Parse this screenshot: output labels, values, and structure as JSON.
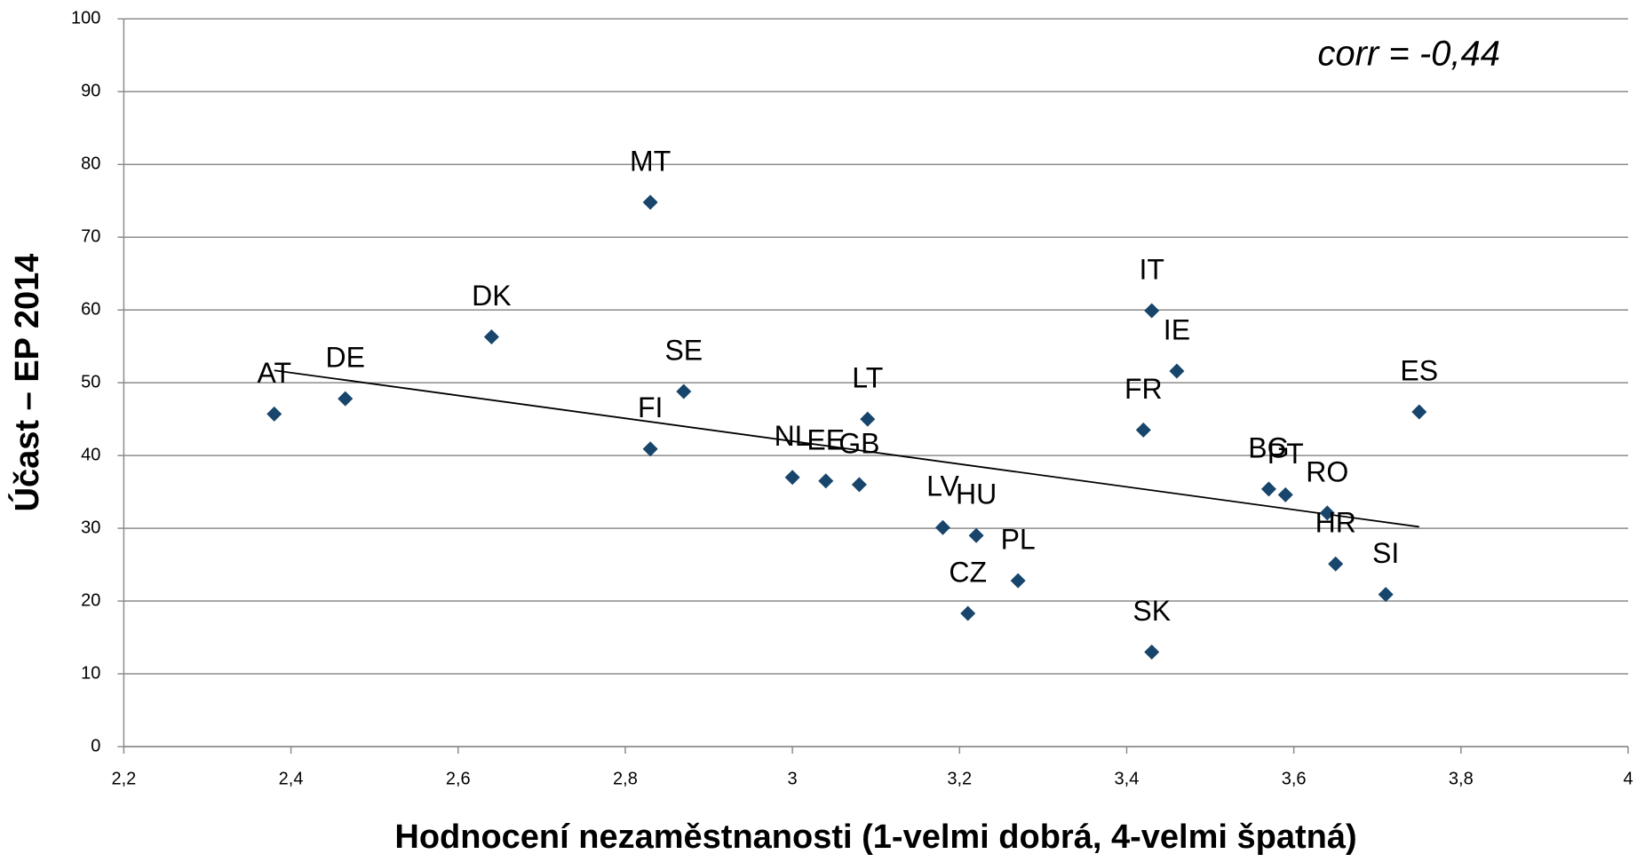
{
  "chart_data": {
    "type": "scatter",
    "xlabel": "Hodnocení nezaměstnanosti (1-velmi dobrá, 4-velmi špatná)",
    "ylabel": "Účast – EP 2014",
    "annotation": "corr = -0,44",
    "point_labels": [
      "AT",
      "DE",
      "DK",
      "MT",
      "SE",
      "FI",
      "NL",
      "EE",
      "GB",
      "LT",
      "LV",
      "HU",
      "CZ",
      "PL",
      "SK",
      "IT",
      "IE",
      "FR",
      "BG",
      "PT",
      "RO",
      "HR",
      "SI",
      "ES"
    ],
    "x": [
      2.38,
      2.465,
      2.64,
      2.83,
      2.87,
      2.83,
      3.0,
      3.04,
      3.08,
      3.09,
      3.18,
      3.22,
      3.21,
      3.27,
      3.43,
      3.43,
      3.46,
      3.42,
      3.57,
      3.59,
      3.64,
      3.65,
      3.71,
      3.75
    ],
    "values": [
      45.7,
      47.8,
      56.3,
      74.8,
      48.8,
      40.9,
      37.0,
      36.5,
      36.0,
      45.0,
      30.1,
      29.0,
      18.3,
      22.8,
      13.0,
      59.9,
      51.6,
      43.5,
      35.4,
      34.6,
      32.1,
      25.1,
      20.9,
      46.0
    ],
    "color": "#17456b",
    "trendline": {
      "x": [
        2.38,
        3.75
      ],
      "y": [
        51.7,
        30.2
      ],
      "color": "#000000"
    },
    "xlim": [
      2.2,
      4
    ],
    "xticks": [
      {
        "value": 2.2,
        "label": "2,2"
      },
      {
        "value": 2.4,
        "label": "2,4"
      },
      {
        "value": 2.6,
        "label": "2,6"
      },
      {
        "value": 2.8,
        "label": "2,8"
      },
      3,
      {
        "value": 3.2,
        "label": "3,2"
      },
      {
        "value": 3.4,
        "label": "3,4"
      },
      {
        "value": 3.6,
        "label": "3,6"
      },
      {
        "value": 3.8,
        "label": "3,8"
      },
      4
    ],
    "ylim": [
      0,
      100
    ],
    "yticks": [
      0,
      10,
      20,
      30,
      40,
      50,
      60,
      70,
      80,
      90,
      100
    ],
    "grid": true
  }
}
